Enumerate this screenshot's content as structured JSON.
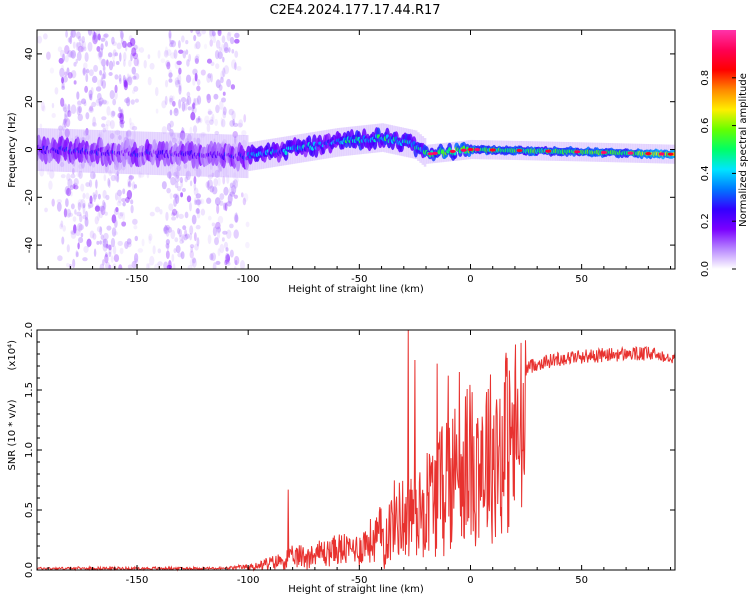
{
  "figure_title": "C2E4.2024.177.17.44.R17",
  "colors": {
    "snr_line": "#e8322f",
    "axis": "#000000",
    "colorbar_stops": [
      "#ffffff",
      "#b888ff",
      "#7a00ff",
      "#3300ff",
      "#0077ff",
      "#00e5ff",
      "#00ff66",
      "#66ff00",
      "#ffee00",
      "#ff8800",
      "#ff0000",
      "#ff0055",
      "#ff33aa"
    ]
  },
  "chart_data": [
    {
      "type": "heatmap",
      "name": "spectrogram",
      "title": "",
      "xlabel": "Height of straight line (km)",
      "ylabel": "Frequency (Hz)",
      "xlim": [
        -195,
        92
      ],
      "ylim": [
        -50,
        50
      ],
      "xticks": [
        -150,
        -100,
        -50,
        0,
        50
      ],
      "xtick_labels": [
        "-150",
        "-100",
        "-50",
        "0",
        "50"
      ],
      "yticks": [
        -40,
        -20,
        0,
        20,
        40
      ],
      "ytick_labels": [
        "-40",
        "-20",
        "0",
        "20",
        "40"
      ],
      "colorbar": {
        "label": "Normalized spectral amplitude",
        "range": [
          0,
          1
        ],
        "ticks": [
          0.0,
          0.2,
          0.4,
          0.6,
          0.8
        ],
        "tick_labels": [
          "0.0",
          "0.2",
          "0.4",
          "0.6",
          "0.8"
        ]
      },
      "trace_centerline": [
        {
          "x": -195,
          "y": 0
        },
        {
          "x": -100,
          "y": -3
        },
        {
          "x": -80,
          "y": 0
        },
        {
          "x": -60,
          "y": 3
        },
        {
          "x": -40,
          "y": 5
        },
        {
          "x": -25,
          "y": 2
        },
        {
          "x": -20,
          "y": -2
        },
        {
          "x": 0,
          "y": 0
        },
        {
          "x": 50,
          "y": -1
        },
        {
          "x": 92,
          "y": -2
        }
      ],
      "noise_columns_x": [
        [
          -185,
          -150
        ],
        [
          -138,
          -122
        ],
        [
          -118,
          -105
        ]
      ]
    },
    {
      "type": "line",
      "name": "snr",
      "title": "",
      "xlabel": "Height of straight line (km)",
      "ylabel": "SNR (10 * v/v)",
      "multiplier_label": "(x10⁴)",
      "xlim": [
        -195,
        92
      ],
      "ylim": [
        0,
        2.0
      ],
      "xticks": [
        -150,
        -100,
        -50,
        0,
        50
      ],
      "xtick_labels": [
        "-150",
        "-100",
        "-50",
        "0",
        "50"
      ],
      "yticks": [
        0,
        0.5,
        1.0,
        1.5,
        2.0
      ],
      "ytick_labels": [
        "0.0",
        "0.5",
        "1.0",
        "1.5",
        "2.0"
      ],
      "envelope": {
        "x": [
          -195,
          -150,
          -110,
          -100,
          -90,
          -80,
          -70,
          -60,
          -55,
          -50,
          -45,
          -40,
          -35,
          -30,
          -27,
          -25,
          -20,
          -15,
          -10,
          -5,
          0,
          5,
          10,
          15,
          20,
          25,
          30,
          40,
          50,
          60,
          70,
          80,
          92
        ],
        "y": [
          0.02,
          0.02,
          0.02,
          0.04,
          0.08,
          0.15,
          0.2,
          0.25,
          0.25,
          0.28,
          0.35,
          0.45,
          0.55,
          0.7,
          0.75,
          0.7,
          0.85,
          1.0,
          1.15,
          1.25,
          1.35,
          1.4,
          1.45,
          1.55,
          1.62,
          1.68,
          1.72,
          1.76,
          1.78,
          1.79,
          1.8,
          1.8,
          1.78
        ]
      },
      "peaks": [
        {
          "x": -82,
          "y": 0.67
        },
        {
          "x": -28,
          "y": 2.0
        },
        {
          "x": -25,
          "y": 1.75
        },
        {
          "x": -15,
          "y": 1.72
        },
        {
          "x": -10,
          "y": 1.62
        },
        {
          "x": -5,
          "y": 1.65
        }
      ]
    }
  ]
}
